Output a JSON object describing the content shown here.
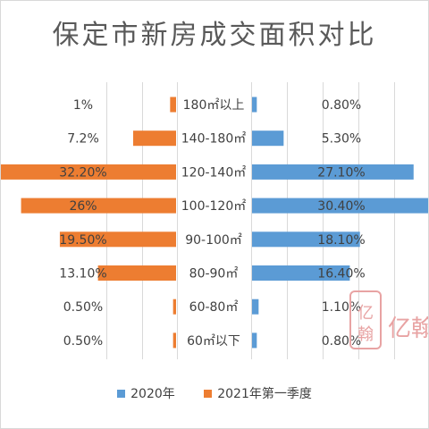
{
  "title": "保定市新房成交面积对比",
  "legend": [
    {
      "name": "2020年",
      "color": "#5B9BD5"
    },
    {
      "name": "2021年第一季度",
      "color": "#ED7D31"
    }
  ],
  "watermark": {
    "text": "亿翰",
    "color": "#E8A3A3"
  },
  "chart_data": {
    "type": "bar",
    "orientation": "horizontal-butterfly",
    "title": "保定市新房成交面积对比",
    "categories": [
      "180㎡以上",
      "140-180㎡",
      "120-140㎡",
      "100-120㎡",
      "90-100㎡",
      "80-90㎡",
      "60-80㎡",
      "60㎡以下"
    ],
    "series": [
      {
        "name": "2021年第一季度",
        "side": "left",
        "color": "#ED7D31",
        "values": [
          1.0,
          7.2,
          32.2,
          26.0,
          19.5,
          13.1,
          0.5,
          0.5
        ],
        "labels": [
          "1%",
          "7.2%",
          "32.20%",
          "26%",
          "19.50%",
          "13.10%",
          "0.50%",
          "0.50%"
        ]
      },
      {
        "name": "2020年",
        "side": "right",
        "color": "#5B9BD5",
        "values": [
          0.8,
          5.3,
          27.1,
          30.4,
          18.1,
          16.4,
          1.1,
          0.8
        ],
        "labels": [
          "0.80%",
          "5.30%",
          "27.10%",
          "30.40%",
          "18.10%",
          "16.40%",
          "1.10%",
          "0.80%"
        ]
      }
    ],
    "gridlines": true
  }
}
